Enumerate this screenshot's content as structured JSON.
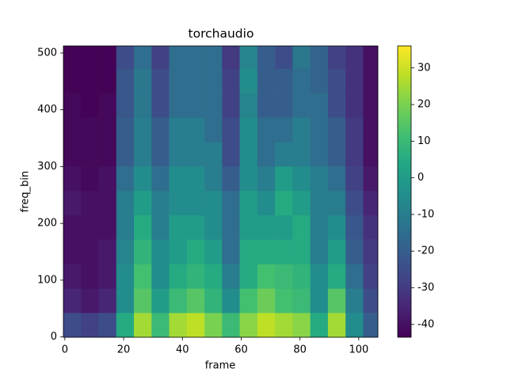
{
  "chart_data": {
    "type": "heatmap",
    "title": "torchaudio",
    "x_label": "frame",
    "y_label": "freq_bin",
    "xlim": [
      -0.5,
      106.5
    ],
    "ylim": [
      -0.5,
      512.5
    ],
    "xticks": [
      0,
      20,
      40,
      60,
      80,
      100
    ],
    "yticks": [
      0,
      100,
      200,
      300,
      400,
      500
    ],
    "colormap": "viridis",
    "clim": [
      -43.5,
      36
    ],
    "cbar_ticks": [
      -40,
      -30,
      -20,
      -10,
      0,
      10,
      20,
      30
    ],
    "xbins": [
      -0.5,
      5.5,
      11.5,
      17.5,
      23.5,
      29.5,
      35.5,
      41.5,
      47.5,
      53.5,
      59.5,
      65.5,
      71.5,
      77.5,
      83.5,
      89.5,
      95.5,
      101.5,
      106.5
    ],
    "ybins": [
      -0.5,
      42.5,
      85.5,
      128.5,
      171.5,
      214.5,
      257.5,
      300.5,
      343.5,
      386.5,
      429.5,
      472.5,
      512.5
    ],
    "values": [
      [
        -25,
        -28,
        -25,
        5,
        25,
        10,
        25,
        28,
        20,
        10,
        22,
        28,
        25,
        22,
        5,
        25,
        -5,
        -20
      ],
      [
        -35,
        -38,
        -35,
        -5,
        15,
        0,
        10,
        15,
        8,
        -5,
        12,
        18,
        12,
        10,
        -5,
        15,
        -10,
        -25
      ],
      [
        -38,
        -40,
        -38,
        -5,
        12,
        -5,
        5,
        8,
        5,
        -10,
        5,
        12,
        10,
        8,
        -5,
        5,
        -15,
        -28
      ],
      [
        -40,
        -40,
        -38,
        -8,
        8,
        -5,
        0,
        5,
        0,
        -15,
        5,
        5,
        5,
        5,
        -10,
        0,
        -20,
        -30
      ],
      [
        -40,
        -40,
        -40,
        -10,
        5,
        -10,
        0,
        0,
        -5,
        -15,
        0,
        0,
        0,
        5,
        -10,
        -5,
        -22,
        -32
      ],
      [
        -38,
        -40,
        -40,
        -10,
        0,
        -10,
        -5,
        -5,
        -5,
        -15,
        0,
        -5,
        5,
        0,
        -10,
        -10,
        -25,
        -35
      ],
      [
        -40,
        -42,
        -40,
        -15,
        -5,
        -15,
        -5,
        -5,
        -10,
        -20,
        -5,
        -10,
        0,
        -5,
        -10,
        -15,
        -28,
        -38
      ],
      [
        -42,
        -42,
        -42,
        -20,
        -10,
        -20,
        -10,
        -10,
        -10,
        -25,
        -5,
        -15,
        -10,
        -10,
        -15,
        -20,
        -30,
        -40
      ],
      [
        -42,
        -42,
        -42,
        -20,
        -10,
        -20,
        -10,
        -10,
        -15,
        -25,
        -5,
        -15,
        -15,
        -10,
        -15,
        -20,
        -30,
        -40
      ],
      [
        -42,
        -43,
        -42,
        -22,
        -12,
        -25,
        -15,
        -15,
        -15,
        -28,
        -8,
        -20,
        -20,
        -15,
        -15,
        -25,
        -32,
        -40
      ],
      [
        -43,
        -43,
        -43,
        -22,
        -12,
        -25,
        -15,
        -15,
        -15,
        -28,
        -5,
        -20,
        -20,
        -15,
        -18,
        -25,
        -32,
        -40
      ],
      [
        -43,
        -43,
        -43,
        -25,
        -15,
        -28,
        -15,
        -15,
        -15,
        -30,
        -8,
        -20,
        -25,
        -12,
        -18,
        -28,
        -32,
        -40
      ]
    ]
  }
}
